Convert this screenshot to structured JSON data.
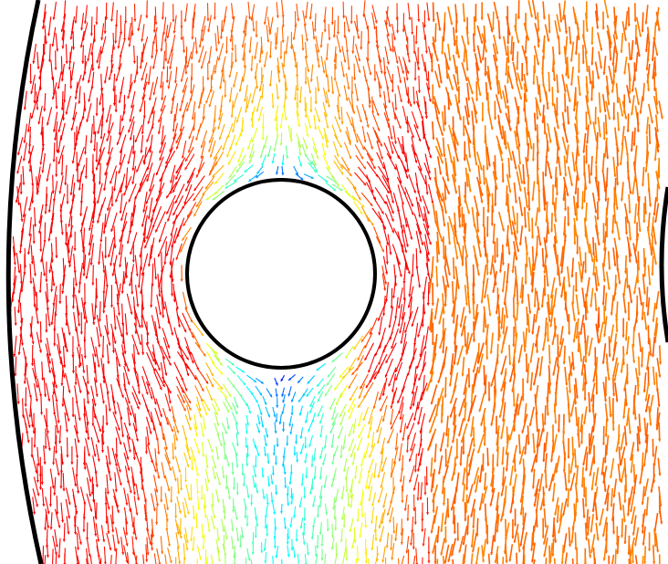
{
  "figure": {
    "kind": "vector-field-around-cylinder",
    "background": "#ffffff",
    "boundary_color": "#000000",
    "colormap": [
      "#00008b",
      "#0000ff",
      "#0080ff",
      "#00ffff",
      "#80ff80",
      "#ffff00",
      "#ff8000",
      "#ff0000",
      "#8b0000"
    ]
  }
}
